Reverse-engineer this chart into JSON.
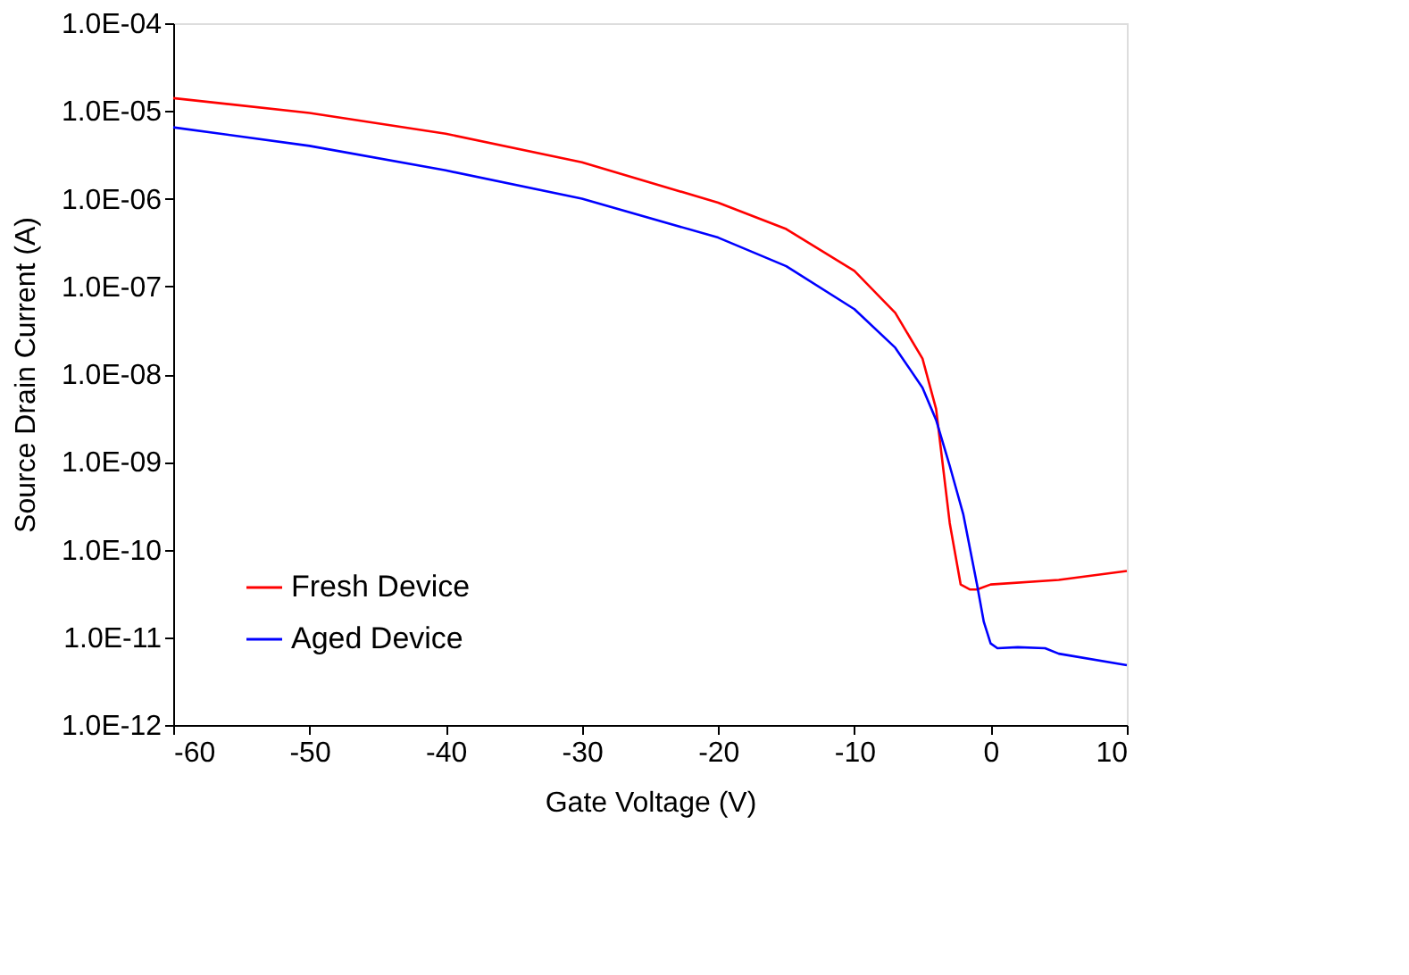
{
  "chart_data": {
    "type": "line",
    "xlabel": "Gate Voltage (V)",
    "ylabel": "Source Drain Current (A)",
    "xlim": [
      -60,
      10
    ],
    "xticks": [
      -60,
      -50,
      -40,
      -30,
      -20,
      -10,
      0,
      10
    ],
    "ylim": [
      1e-12,
      0.0001
    ],
    "log": "y",
    "yticks": [
      {
        "value": 1e-12,
        "label": "1.0E-12"
      },
      {
        "value": 1e-11,
        "label": "1.0E-11"
      },
      {
        "value": 1e-10,
        "label": "1.0E-10"
      },
      {
        "value": 1e-09,
        "label": "1.0E-09"
      },
      {
        "value": 1e-08,
        "label": "1.0E-08"
      },
      {
        "value": 1e-07,
        "label": "1.0E-07"
      },
      {
        "value": 1e-06,
        "label": "1.0E-06"
      },
      {
        "value": 1e-05,
        "label": "1.0E-05"
      },
      {
        "value": 0.0001,
        "label": "1.0E-04"
      }
    ],
    "grid": false,
    "legend": "bottom left",
    "marker": "none",
    "line_style": "solid",
    "series": [
      {
        "name": "Fresh Device",
        "color": "#ff0000",
        "x": [
          -60,
          -50,
          -40,
          -30,
          -20,
          -15,
          -10,
          -7,
          -5,
          -4,
          -3,
          -2.2,
          -1.5,
          -1,
          0,
          5,
          10
        ],
        "values": [
          1.4e-05,
          9.5e-06,
          5.5e-06,
          2.6e-06,
          9e-07,
          4.5e-07,
          1.5e-07,
          5e-08,
          1.5e-08,
          4e-09,
          2e-10,
          4e-11,
          3.5e-11,
          3.5e-11,
          4e-11,
          4.5e-11,
          5.7e-11
        ]
      },
      {
        "name": "Aged Device",
        "color": "#0000ff",
        "x": [
          -60,
          -50,
          -40,
          -30,
          -20,
          -15,
          -10,
          -7,
          -5,
          -4,
          -3,
          -2,
          -1,
          -0.5,
          0,
          0.5,
          2,
          4,
          5,
          10
        ],
        "values": [
          6.5e-06,
          4e-06,
          2.1e-06,
          1e-06,
          3.6e-07,
          1.7e-07,
          5.5e-08,
          2e-08,
          7e-09,
          3e-09,
          9e-10,
          2.5e-10,
          4e-11,
          1.5e-11,
          8.5e-12,
          7.5e-12,
          7.7e-12,
          7.5e-12,
          6.5e-12,
          4.8e-12
        ]
      }
    ]
  }
}
